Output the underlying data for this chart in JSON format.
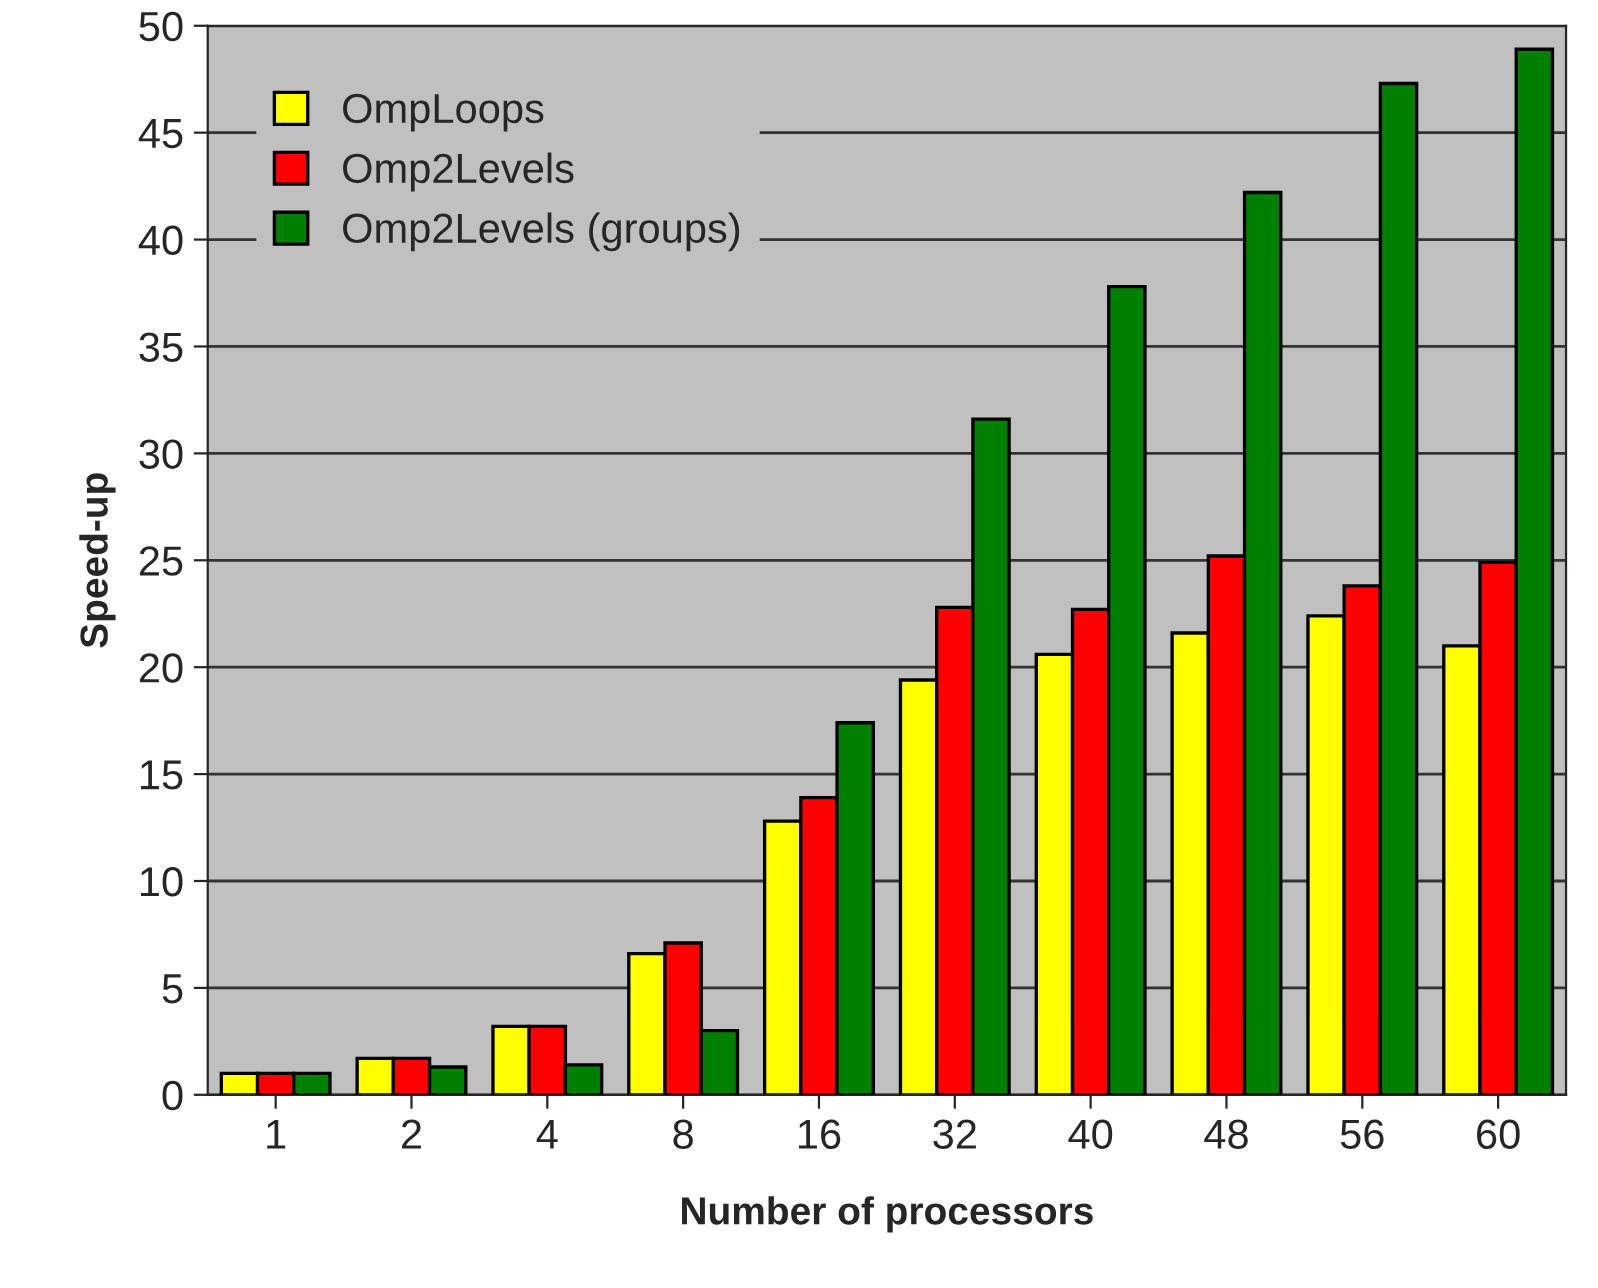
{
  "chart_data": {
    "type": "bar",
    "xlabel": "Number of processors",
    "ylabel": "Speed-up",
    "categories": [
      "1",
      "2",
      "4",
      "8",
      "16",
      "32",
      "40",
      "48",
      "56",
      "60"
    ],
    "series": [
      {
        "name": "OmpLoops",
        "color": "#ffff00",
        "values": [
          1.0,
          1.7,
          3.2,
          6.6,
          12.8,
          19.4,
          20.6,
          21.6,
          22.4,
          21.0
        ]
      },
      {
        "name": "Omp2Levels",
        "color": "#ff0000",
        "values": [
          1.0,
          1.7,
          3.2,
          7.1,
          13.9,
          22.8,
          22.7,
          25.2,
          23.8,
          24.9
        ]
      },
      {
        "name": "Omp2Levels (groups)",
        "color": "#008000",
        "values": [
          1.0,
          1.3,
          1.4,
          3.0,
          17.4,
          31.6,
          37.8,
          42.2,
          47.3,
          48.9
        ]
      }
    ],
    "ylim": [
      0,
      50
    ],
    "yticks": [
      0,
      5,
      10,
      15,
      20,
      25,
      30,
      35,
      40,
      45,
      50
    ],
    "grid": "y",
    "legend": "top left"
  }
}
